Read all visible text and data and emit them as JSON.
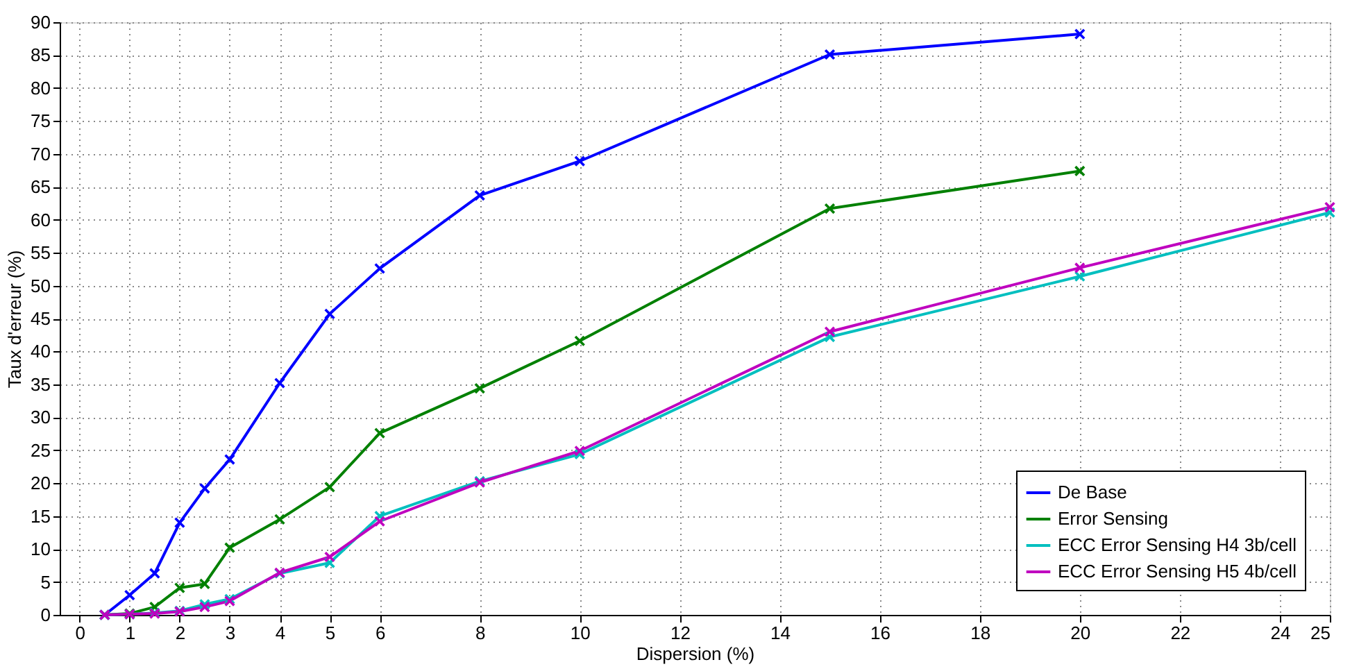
{
  "chart_data": {
    "type": "line",
    "xlabel": "Dispersion (%)",
    "ylabel": "Taux d'erreur (%)",
    "xlim": [
      -0.4,
      25
    ],
    "xticks": [
      0,
      1,
      2,
      3,
      4,
      5,
      6,
      8,
      10,
      12,
      14,
      16,
      18,
      20,
      22,
      24,
      25
    ],
    "ylim": [
      0,
      90
    ],
    "yticks": [
      0,
      5,
      10,
      15,
      20,
      25,
      30,
      35,
      40,
      45,
      50,
      55,
      60,
      65,
      70,
      75,
      80,
      85,
      90
    ],
    "grid": true,
    "legend": "bottom right",
    "marker": "cross",
    "line_style": "solid",
    "series": [
      {
        "name": "De Base",
        "color": "#0000ff",
        "x": [
          0.5,
          1,
          1.5,
          2,
          2.5,
          3,
          4,
          5,
          6,
          8,
          10,
          15,
          20
        ],
        "values": [
          0,
          3,
          6.3,
          14,
          19.2,
          23.6,
          35.2,
          45.7,
          52.6,
          63.7,
          68.9,
          85.1,
          88.2
        ]
      },
      {
        "name": "Error Sensing",
        "color": "#008000",
        "x": [
          0.5,
          1,
          1.5,
          2,
          2.5,
          3,
          4,
          5,
          6,
          8,
          10,
          15,
          20
        ],
        "values": [
          0,
          0.2,
          1.2,
          4.1,
          4.7,
          10.2,
          14.5,
          19.4,
          27.6,
          34.4,
          41.6,
          61.7,
          67.4
        ]
      },
      {
        "name": "ECC Error Sensing H4 3b/cell",
        "color": "#00bfbf",
        "x": [
          0.5,
          1,
          1.5,
          2,
          2.5,
          3,
          4,
          5,
          6,
          8,
          10,
          15,
          20,
          25
        ],
        "values": [
          0,
          0.1,
          0.3,
          0.6,
          1.6,
          2.4,
          6.3,
          7.9,
          15,
          20.3,
          24.4,
          42.2,
          51.4,
          61.1
        ]
      },
      {
        "name": "ECC Error Sensing H5 4b/cell",
        "color": "#bf00bf",
        "x": [
          0.5,
          1,
          1.5,
          2,
          2.5,
          3,
          4,
          5,
          6,
          8,
          10,
          15,
          20,
          25
        ],
        "values": [
          0,
          0.1,
          0.2,
          0.5,
          1.2,
          2.1,
          6.4,
          8.8,
          14.2,
          20.1,
          24.9,
          43,
          52.7,
          61.9
        ]
      }
    ]
  }
}
